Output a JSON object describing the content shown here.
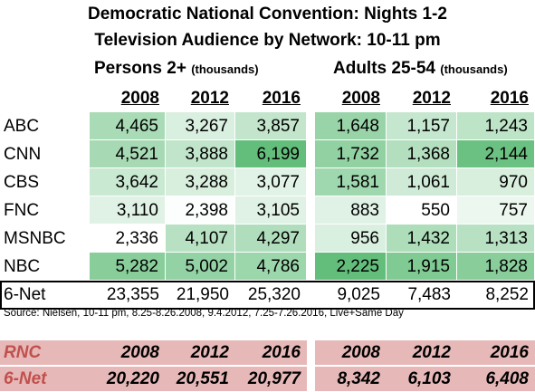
{
  "chart_data": {
    "type": "table",
    "title": "Democratic National Convention: Nights 1-2",
    "subtitle": "Television Audience by Network: 10-11 pm",
    "groups": [
      {
        "label": "Persons 2+",
        "unit": "(thousands)",
        "years": [
          "2008",
          "2012",
          "2016"
        ]
      },
      {
        "label": "Adults 25-54",
        "unit": "(thousands)",
        "years": [
          "2008",
          "2012",
          "2016"
        ]
      }
    ],
    "rows": [
      {
        "network": "ABC",
        "persons": [
          "4,465",
          "3,267",
          "3,857"
        ],
        "adults": [
          "1,648",
          "1,157",
          "1,243"
        ]
      },
      {
        "network": "CNN",
        "persons": [
          "4,521",
          "3,888",
          "6,199"
        ],
        "adults": [
          "1,732",
          "1,368",
          "2,144"
        ]
      },
      {
        "network": "CBS",
        "persons": [
          "3,642",
          "3,288",
          "3,077"
        ],
        "adults": [
          "1,581",
          "1,061",
          "970"
        ]
      },
      {
        "network": "FNC",
        "persons": [
          "3,110",
          "2,398",
          "3,105"
        ],
        "adults": [
          "883",
          "550",
          "757"
        ]
      },
      {
        "network": "MSNBC",
        "persons": [
          "2,336",
          "4,107",
          "4,297"
        ],
        "adults": [
          "956",
          "1,432",
          "1,313"
        ]
      },
      {
        "network": "NBC",
        "persons": [
          "5,282",
          "5,002",
          "4,786"
        ],
        "adults": [
          "2,225",
          "1,915",
          "1,828"
        ]
      }
    ],
    "total": {
      "network": "6-Net",
      "persons": [
        "23,355",
        "21,950",
        "25,320"
      ],
      "adults": [
        "9,025",
        "7,483",
        "8,252"
      ]
    },
    "source": "Source: Nielsen, 10-11 pm, 8.25-8.26.2008, 9.4.2012, 7.25-7.26.2016, Live+Same Day",
    "rnc": {
      "label": "RNC",
      "years": [
        "2008",
        "2012",
        "2016",
        "2008",
        "2012",
        "2016"
      ],
      "total_label": "6-Net",
      "values": [
        "20,220",
        "20,551",
        "20,977",
        "8,342",
        "6,103",
        "6,408"
      ]
    },
    "colors": {
      "heat_low": "#ffffff",
      "heat_high": "#63be7b",
      "rnc_fill": "#e6b9b8",
      "rnc_label": "#c0504d"
    }
  }
}
